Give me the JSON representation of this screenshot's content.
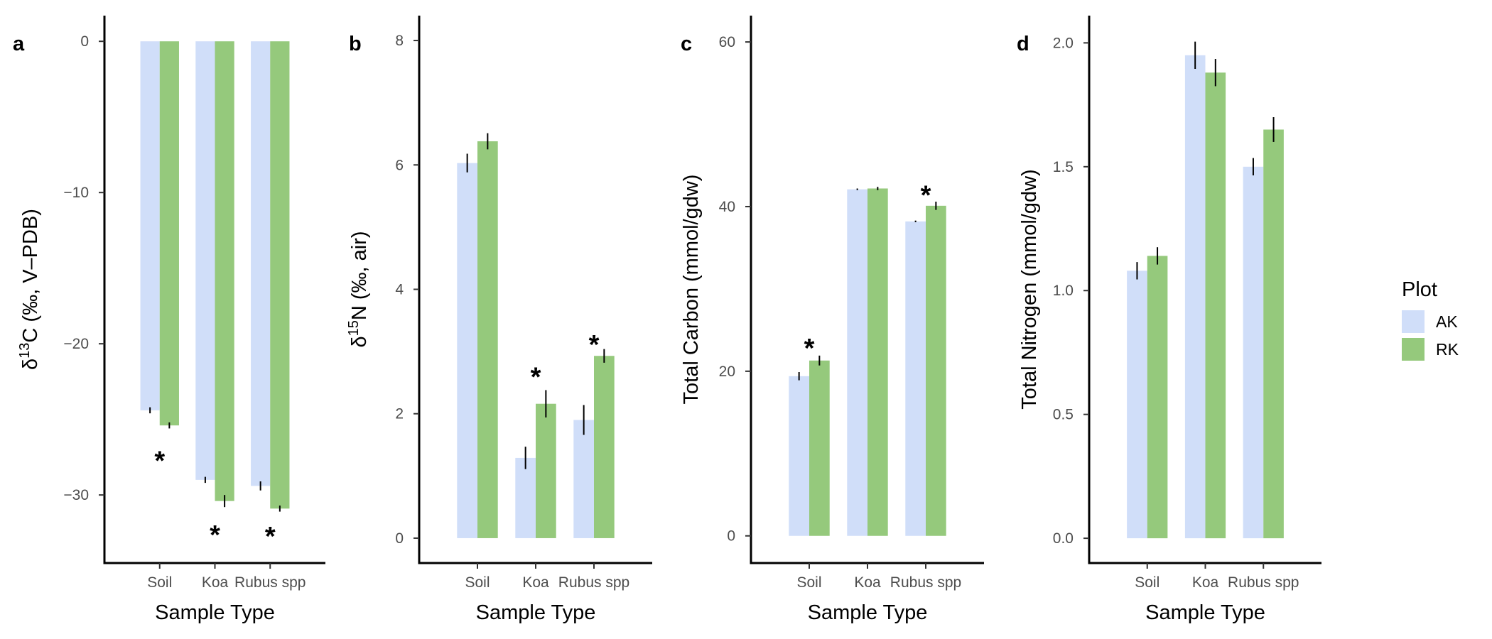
{
  "colors": {
    "AK": "#d0def9",
    "RK": "#95c97c"
  },
  "legend": {
    "title": "Plot",
    "items": [
      {
        "label": "AK",
        "color": "#d0def9"
      },
      {
        "label": "RK",
        "color": "#95c97c"
      }
    ]
  },
  "chart_data": [
    {
      "type": "bar",
      "panel": "a",
      "ylabel": {
        "pre": "δ",
        "sup": "13",
        "post": "C (‰, V–PDB)"
      },
      "xlabel": "Sample Type",
      "categories": [
        "Soil",
        "Koa",
        "Rubus spp"
      ],
      "ylim": [
        -34.5,
        1.7
      ],
      "yticks": [
        0,
        -10,
        -20,
        -30
      ],
      "ytick_labels": [
        "0",
        "−10",
        "−20",
        "−30"
      ],
      "series": [
        {
          "name": "AK",
          "values": [
            -24.4,
            -29.0,
            -29.4
          ],
          "errors": [
            0.2,
            0.2,
            0.3
          ]
        },
        {
          "name": "RK",
          "values": [
            -25.4,
            -30.4,
            -30.9
          ],
          "errors": [
            0.2,
            0.4,
            0.2
          ]
        }
      ],
      "significance": [
        {
          "category": "Soil",
          "label": "*",
          "at": -27.3
        },
        {
          "category": "Koa",
          "label": "*",
          "at": -32.2
        },
        {
          "category": "Rubus spp",
          "label": "*",
          "at": -32.3
        }
      ]
    },
    {
      "type": "bar",
      "panel": "b",
      "ylabel": {
        "pre": "δ",
        "sup": "15",
        "post": "N (‰, air)"
      },
      "xlabel": "Sample Type",
      "categories": [
        "Soil",
        "Koa",
        "Rubus spp"
      ],
      "ylim": [
        -0.4,
        8.4
      ],
      "yticks": [
        0,
        2,
        4,
        6,
        8
      ],
      "ytick_labels": [
        "0",
        "2",
        "4",
        "6",
        "8"
      ],
      "series": [
        {
          "name": "AK",
          "values": [
            6.03,
            1.29,
            1.9
          ],
          "errors": [
            0.15,
            0.18,
            0.24
          ]
        },
        {
          "name": "RK",
          "values": [
            6.38,
            2.16,
            2.93
          ],
          "errors": [
            0.13,
            0.22,
            0.11
          ]
        }
      ],
      "significance": [
        {
          "category": "Koa",
          "label": "*",
          "at": 2.7
        },
        {
          "category": "Rubus spp",
          "label": "*",
          "at": 3.22
        }
      ]
    },
    {
      "type": "bar",
      "panel": "c",
      "ylabel": "Total Carbon (mmol/gdw)",
      "xlabel": "Sample Type",
      "categories": [
        "Soil",
        "Koa",
        "Rubus spp"
      ],
      "ylim": [
        -3.3,
        63.2
      ],
      "yticks": [
        0,
        20,
        40,
        60
      ],
      "ytick_labels": [
        "0",
        "20",
        "40",
        "60"
      ],
      "series": [
        {
          "name": "AK",
          "values": [
            19.4,
            42.1,
            38.2
          ],
          "errors": [
            0.5,
            0.1,
            0.1
          ]
        },
        {
          "name": "RK",
          "values": [
            21.3,
            42.2,
            40.1
          ],
          "errors": [
            0.6,
            0.2,
            0.5
          ]
        }
      ],
      "significance": [
        {
          "category": "Soil",
          "label": "*",
          "at": 23.6
        },
        {
          "category": "Rubus spp",
          "label": "*",
          "at": 42.2
        }
      ]
    },
    {
      "type": "bar",
      "panel": "d",
      "ylabel": "Total Nitrogen (mmol/gdw)",
      "xlabel": "Sample Type",
      "categories": [
        "Soil",
        "Koa",
        "Rubus spp"
      ],
      "ylim": [
        -0.1,
        2.11
      ],
      "yticks": [
        0,
        0.5,
        1.0,
        1.5,
        2.0
      ],
      "ytick_labels": [
        "0.0",
        "0.5",
        "1.0",
        "1.5",
        "2.0"
      ],
      "series": [
        {
          "name": "AK",
          "values": [
            1.08,
            1.95,
            1.5
          ],
          "errors": [
            0.035,
            0.055,
            0.035
          ]
        },
        {
          "name": "RK",
          "values": [
            1.14,
            1.88,
            1.65
          ],
          "errors": [
            0.035,
            0.055,
            0.05
          ]
        }
      ],
      "significance": []
    }
  ]
}
